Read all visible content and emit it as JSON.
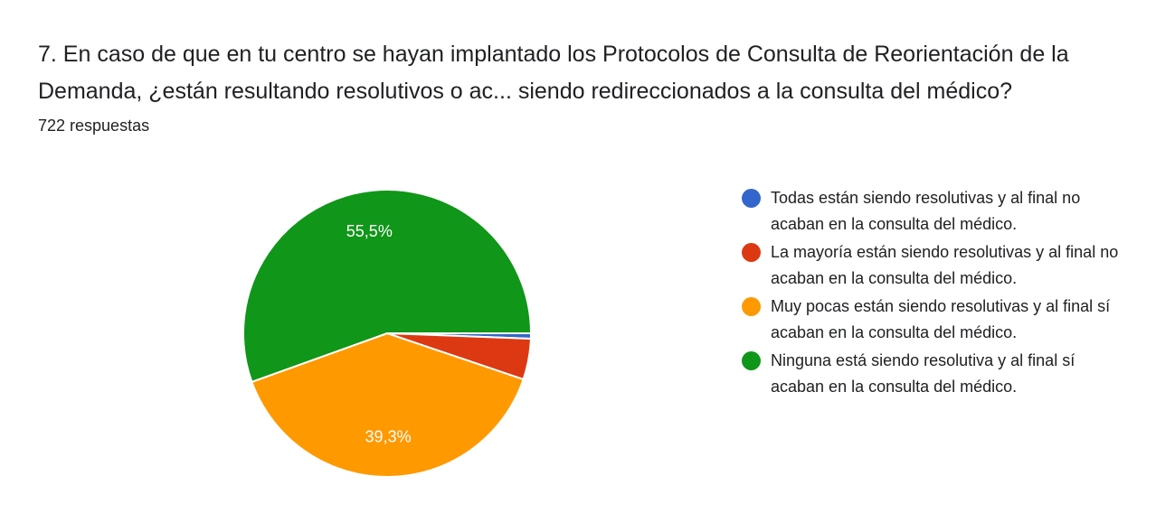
{
  "header": {
    "question": "7. En caso de que en tu centro se hayan implantado los Protocolos de Consulta de Reorientación de la Demanda, ¿están resultando resolutivos o ac... siendo redireccionados a la consulta del médico?",
    "responses": "722 respuestas"
  },
  "chart_data": {
    "type": "pie",
    "title": "",
    "slices": [
      {
        "name": "Todas están siendo resolutivas y al final no acaban en la consulta del médico.",
        "value": 0.6,
        "label": "",
        "color": "#3366cc"
      },
      {
        "name": "La mayoría están siendo resolutivas y al final no acaban en la consulta del médico.",
        "value": 4.6,
        "label": "",
        "color": "#dc3912"
      },
      {
        "name": "Muy pocas están siendo resolutivas y al final sí acaban en la consulta del médico.",
        "value": 39.3,
        "label": "39,3%",
        "color": "#ff9900"
      },
      {
        "name": "Ninguna está siendo resolutiva y al final sí acaban en la consulta del médico.",
        "value": 55.5,
        "label": "55,5%",
        "color": "#109618"
      }
    ],
    "legend_position": "right",
    "start_angle": "3 o'clock, clockwise"
  }
}
